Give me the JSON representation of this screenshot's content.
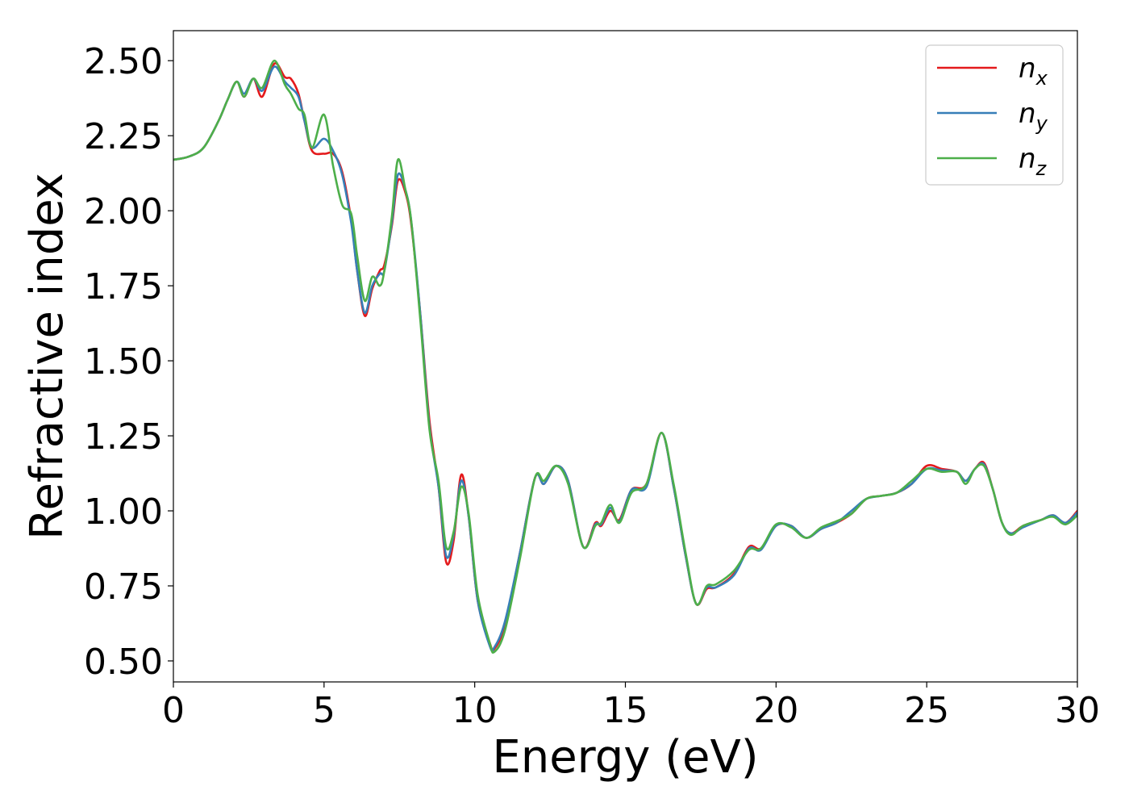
{
  "chart_data": {
    "type": "line",
    "xlabel": "Energy (eV)",
    "ylabel": "Refractive index",
    "xlim": [
      0,
      30
    ],
    "ylim": [
      0.43,
      2.6
    ],
    "xticks": [
      0,
      5,
      10,
      15,
      20,
      25,
      30
    ],
    "xtick_labels": [
      "0",
      "5",
      "10",
      "15",
      "20",
      "25",
      "30"
    ],
    "yticks": [
      0.5,
      0.75,
      1.0,
      1.25,
      1.5,
      1.75,
      2.0,
      2.25,
      2.5
    ],
    "ytick_labels": [
      "0.50",
      "0.75",
      "1.00",
      "1.25",
      "1.50",
      "1.75",
      "2.00",
      "2.25",
      "2.50"
    ],
    "grid": false,
    "legend_position": "top-right",
    "series": [
      {
        "name": "n",
        "sub": "x",
        "color": "#e41a1c",
        "x": [
          0,
          0.5,
          1.0,
          1.5,
          1.8,
          2.1,
          2.35,
          2.65,
          2.95,
          3.35,
          3.7,
          3.9,
          4.15,
          4.35,
          4.6,
          5.0,
          5.3,
          5.6,
          5.9,
          6.1,
          6.35,
          6.6,
          6.85,
          7.0,
          7.25,
          7.45,
          7.7,
          7.9,
          8.2,
          8.5,
          8.8,
          9.05,
          9.3,
          9.55,
          9.8,
          10.1,
          10.5,
          10.65,
          11.0,
          11.5,
          12.0,
          12.3,
          12.7,
          13.1,
          13.6,
          14.0,
          14.2,
          14.5,
          14.8,
          15.2,
          15.7,
          16.2,
          16.6,
          17.0,
          17.35,
          17.7,
          18.0,
          18.6,
          19.1,
          19.5,
          20.0,
          20.5,
          21.0,
          21.5,
          22.0,
          22.5,
          23.0,
          23.5,
          24.0,
          24.5,
          25.0,
          25.5,
          26.0,
          26.3,
          26.6,
          26.9,
          27.2,
          27.5,
          27.8,
          28.2,
          28.8,
          29.2,
          29.6,
          30.0
        ],
        "y": [
          2.17,
          2.18,
          2.21,
          2.3,
          2.37,
          2.43,
          2.38,
          2.44,
          2.38,
          2.49,
          2.445,
          2.44,
          2.39,
          2.3,
          2.2,
          2.19,
          2.19,
          2.13,
          1.97,
          1.8,
          1.65,
          1.74,
          1.8,
          1.82,
          1.95,
          2.1,
          2.06,
          1.95,
          1.65,
          1.3,
          1.08,
          0.83,
          0.9,
          1.12,
          0.98,
          0.7,
          0.56,
          0.54,
          0.62,
          0.86,
          1.11,
          1.09,
          1.15,
          1.1,
          0.88,
          0.96,
          0.95,
          1.0,
          0.97,
          1.07,
          1.09,
          1.26,
          1.08,
          0.85,
          0.69,
          0.74,
          0.745,
          0.79,
          0.88,
          0.875,
          0.95,
          0.95,
          0.91,
          0.94,
          0.96,
          0.99,
          1.04,
          1.05,
          1.06,
          1.09,
          1.15,
          1.14,
          1.13,
          1.1,
          1.14,
          1.16,
          1.07,
          0.96,
          0.925,
          0.95,
          0.97,
          0.985,
          0.96,
          1.0
        ]
      },
      {
        "name": "n",
        "sub": "y",
        "color": "#377eb8",
        "x": [
          0,
          0.5,
          1.0,
          1.5,
          1.8,
          2.1,
          2.35,
          2.65,
          2.95,
          3.35,
          3.7,
          3.9,
          4.15,
          4.35,
          4.6,
          5.0,
          5.3,
          5.6,
          5.9,
          6.1,
          6.35,
          6.6,
          6.85,
          7.0,
          7.25,
          7.45,
          7.7,
          7.9,
          8.2,
          8.5,
          8.8,
          9.05,
          9.3,
          9.55,
          9.8,
          10.1,
          10.5,
          10.65,
          11.0,
          11.5,
          12.0,
          12.3,
          12.7,
          13.1,
          13.6,
          14.0,
          14.2,
          14.5,
          14.8,
          15.2,
          15.7,
          16.2,
          16.6,
          17.0,
          17.35,
          17.7,
          18.0,
          18.6,
          19.1,
          19.5,
          20.0,
          20.5,
          21.0,
          21.5,
          22.0,
          22.5,
          23.0,
          23.5,
          24.0,
          24.5,
          25.0,
          25.5,
          26.0,
          26.3,
          26.6,
          26.9,
          27.2,
          27.5,
          27.8,
          28.2,
          28.8,
          29.2,
          29.6,
          30.0
        ],
        "y": [
          2.17,
          2.18,
          2.21,
          2.3,
          2.37,
          2.43,
          2.39,
          2.44,
          2.4,
          2.48,
          2.43,
          2.41,
          2.38,
          2.3,
          2.21,
          2.24,
          2.2,
          2.12,
          1.96,
          1.8,
          1.66,
          1.75,
          1.79,
          1.8,
          1.96,
          2.12,
          2.07,
          1.96,
          1.65,
          1.28,
          1.08,
          0.85,
          0.92,
          1.1,
          0.98,
          0.7,
          0.55,
          0.545,
          0.63,
          0.86,
          1.11,
          1.09,
          1.15,
          1.1,
          0.88,
          0.955,
          0.955,
          1.01,
          0.965,
          1.07,
          1.08,
          1.26,
          1.08,
          0.85,
          0.69,
          0.745,
          0.745,
          0.785,
          0.875,
          0.87,
          0.95,
          0.95,
          0.91,
          0.94,
          0.96,
          1.0,
          1.04,
          1.05,
          1.06,
          1.09,
          1.14,
          1.135,
          1.13,
          1.1,
          1.14,
          1.155,
          1.07,
          0.96,
          0.925,
          0.945,
          0.97,
          0.985,
          0.96,
          0.995
        ]
      },
      {
        "name": "n",
        "sub": "z",
        "color": "#4daf4a",
        "x": [
          0,
          0.5,
          1.0,
          1.5,
          1.8,
          2.1,
          2.35,
          2.65,
          2.95,
          3.35,
          3.7,
          3.9,
          4.15,
          4.35,
          4.6,
          5.0,
          5.3,
          5.6,
          5.9,
          6.1,
          6.35,
          6.6,
          6.85,
          7.0,
          7.25,
          7.45,
          7.7,
          7.9,
          8.2,
          8.5,
          8.8,
          9.05,
          9.3,
          9.55,
          9.8,
          10.1,
          10.5,
          10.65,
          11.0,
          11.5,
          12.0,
          12.3,
          12.7,
          13.1,
          13.6,
          14.0,
          14.2,
          14.5,
          14.8,
          15.2,
          15.7,
          16.2,
          16.6,
          17.0,
          17.35,
          17.7,
          18.0,
          18.6,
          19.1,
          19.5,
          20.0,
          20.5,
          21.0,
          21.5,
          22.0,
          22.5,
          23.0,
          23.5,
          24.0,
          24.5,
          25.0,
          25.5,
          26.0,
          26.3,
          26.6,
          26.9,
          27.2,
          27.5,
          27.8,
          28.2,
          28.8,
          29.2,
          29.6,
          30.0
        ],
        "y": [
          2.17,
          2.18,
          2.21,
          2.3,
          2.37,
          2.43,
          2.38,
          2.44,
          2.41,
          2.5,
          2.42,
          2.39,
          2.34,
          2.32,
          2.21,
          2.32,
          2.15,
          2.02,
          1.99,
          1.85,
          1.7,
          1.78,
          1.75,
          1.8,
          1.98,
          2.17,
          2.07,
          1.96,
          1.63,
          1.27,
          1.1,
          0.88,
          0.93,
          1.08,
          0.99,
          0.72,
          0.56,
          0.53,
          0.6,
          0.84,
          1.11,
          1.1,
          1.15,
          1.09,
          0.88,
          0.95,
          0.96,
          1.02,
          0.96,
          1.06,
          1.09,
          1.26,
          1.09,
          0.86,
          0.69,
          0.75,
          0.755,
          0.8,
          0.87,
          0.875,
          0.955,
          0.945,
          0.91,
          0.945,
          0.965,
          0.99,
          1.04,
          1.05,
          1.06,
          1.1,
          1.14,
          1.13,
          1.13,
          1.09,
          1.14,
          1.15,
          1.07,
          0.96,
          0.92,
          0.95,
          0.97,
          0.98,
          0.955,
          0.985
        ]
      }
    ]
  }
}
